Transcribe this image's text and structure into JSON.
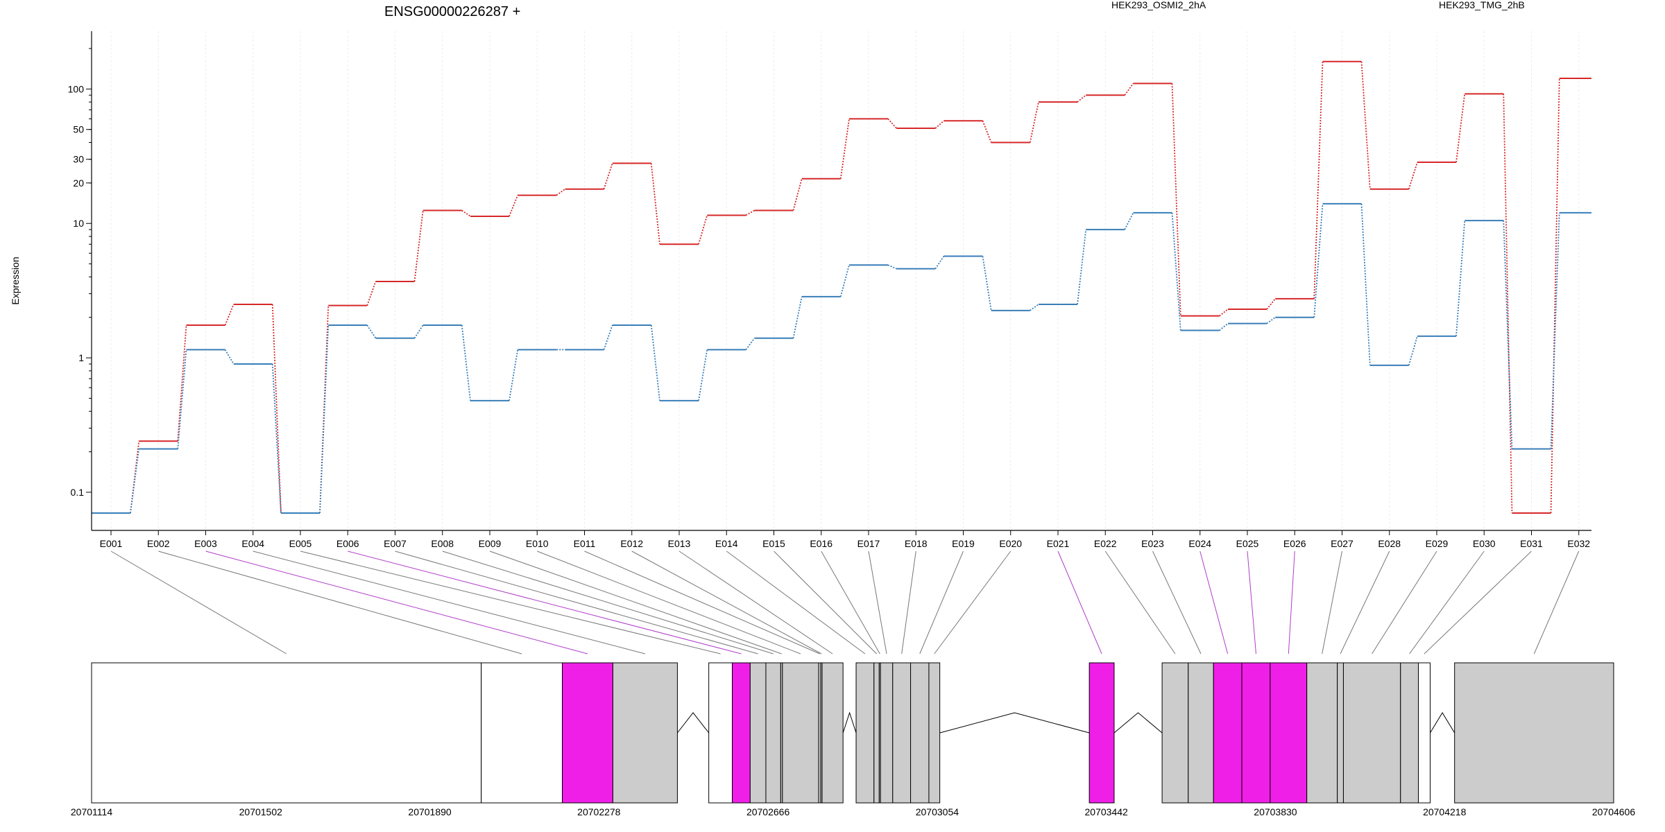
{
  "chart_data": {
    "type": "line",
    "title": "ENSG00000226287 +",
    "ylabel": "Expression",
    "yscale": "log",
    "ylim": [
      0.07,
      200
    ],
    "yticks": [
      {
        "value": 0.1,
        "label": "0.1"
      },
      {
        "value": 1,
        "label": "1"
      },
      {
        "value": 10,
        "label": "10"
      },
      {
        "value": 20,
        "label": "20"
      },
      {
        "value": 30,
        "label": "30"
      },
      {
        "value": 50,
        "label": "50"
      },
      {
        "value": 100,
        "label": "100"
      }
    ],
    "categories": [
      "E001",
      "E002",
      "E003",
      "E004",
      "E005",
      "E006",
      "E007",
      "E008",
      "E009",
      "E010",
      "E011",
      "E012",
      "E013",
      "E014",
      "E015",
      "E016",
      "E017",
      "E018",
      "E019",
      "E020",
      "E021",
      "E022",
      "E023",
      "E024",
      "E025",
      "E026",
      "E027",
      "E028",
      "E029",
      "E030",
      "E031",
      "E032"
    ],
    "series": [
      {
        "name": "HEK293_OSMI2_2hA",
        "color": "#d62728",
        "values": [
          0.07,
          0.24,
          1.75,
          2.5,
          0.07,
          2.45,
          3.7,
          12.5,
          11.3,
          16.2,
          18.0,
          28.0,
          7.0,
          11.5,
          12.5,
          21.5,
          60.0,
          51.0,
          58.0,
          40.0,
          80.0,
          90.0,
          110.0,
          2.05,
          2.3,
          2.75,
          160.0,
          18.0,
          28.5,
          92.0,
          0.07,
          120.0
        ]
      },
      {
        "name": "HEK293_TMG_2hB",
        "color": "#377eb8",
        "values": [
          0.07,
          0.21,
          1.15,
          0.9,
          0.07,
          1.75,
          1.4,
          1.75,
          0.48,
          1.15,
          1.15,
          1.75,
          0.48,
          1.15,
          1.4,
          2.85,
          4.9,
          4.6,
          5.7,
          2.25,
          2.5,
          9.0,
          12.0,
          1.6,
          1.8,
          2.0,
          14.0,
          0.88,
          1.45,
          10.5,
          0.21,
          12.0
        ]
      }
    ],
    "gene_model": {
      "coordinates": [
        "20701114",
        "20701502",
        "20701890",
        "20702278",
        "20702666",
        "20703054",
        "20703442",
        "20703830",
        "20704218",
        "20704606"
      ],
      "range": [
        20701114,
        20704606
      ],
      "exon_bins": [
        {
          "id": "E001",
          "start": 20701114,
          "end": 20702008,
          "fill": "white"
        },
        {
          "id": "E002",
          "start": 20702008,
          "end": 20702194,
          "fill": "white"
        },
        {
          "id": "E003",
          "start": 20702194,
          "end": 20702310,
          "fill": "magenta"
        },
        {
          "id": "E004",
          "start": 20702310,
          "end": 20702458,
          "fill": "gray"
        },
        {
          "id": "E005",
          "start": 20702530,
          "end": 20702584,
          "fill": "white"
        },
        {
          "id": "E006",
          "start": 20702584,
          "end": 20702625,
          "fill": "magenta"
        },
        {
          "id": "E007",
          "start": 20702625,
          "end": 20702661,
          "fill": "gray"
        },
        {
          "id": "E008",
          "start": 20702661,
          "end": 20702695,
          "fill": "gray"
        },
        {
          "id": "E009",
          "start": 20702695,
          "end": 20702699,
          "fill": "gray"
        },
        {
          "id": "E010",
          "start": 20702699,
          "end": 20702782,
          "fill": "gray"
        },
        {
          "id": "E011",
          "start": 20702782,
          "end": 20702787,
          "fill": "gray"
        },
        {
          "id": "E012",
          "start": 20702787,
          "end": 20702790,
          "fill": "gray"
        },
        {
          "id": "E013",
          "start": 20702790,
          "end": 20702838,
          "fill": "gray"
        },
        {
          "id": "E014",
          "start": 20702868,
          "end": 20702909,
          "fill": "gray"
        },
        {
          "id": "E015",
          "start": 20702909,
          "end": 20702921,
          "fill": "gray"
        },
        {
          "id": "E016",
          "start": 20702921,
          "end": 20702924,
          "fill": "gray"
        },
        {
          "id": "E017",
          "start": 20702924,
          "end": 20702952,
          "fill": "gray"
        },
        {
          "id": "E018",
          "start": 20702952,
          "end": 20702993,
          "fill": "gray"
        },
        {
          "id": "E019",
          "start": 20702993,
          "end": 20703035,
          "fill": "gray"
        },
        {
          "id": "E020",
          "start": 20703035,
          "end": 20703060,
          "fill": "gray"
        },
        {
          "id": "E021",
          "start": 20703403,
          "end": 20703460,
          "fill": "magenta"
        },
        {
          "id": "E022",
          "start": 20703570,
          "end": 20703630,
          "fill": "gray"
        },
        {
          "id": "E023",
          "start": 20703630,
          "end": 20703688,
          "fill": "gray"
        },
        {
          "id": "E024",
          "start": 20703688,
          "end": 20703753,
          "fill": "magenta"
        },
        {
          "id": "E025",
          "start": 20703753,
          "end": 20703818,
          "fill": "magenta"
        },
        {
          "id": "E026",
          "start": 20703818,
          "end": 20703902,
          "fill": "magenta"
        },
        {
          "id": "E027",
          "start": 20703902,
          "end": 20703972,
          "fill": "gray"
        },
        {
          "id": "E028",
          "start": 20703972,
          "end": 20703986,
          "fill": "gray"
        },
        {
          "id": "E029",
          "start": 20703986,
          "end": 20704117,
          "fill": "gray"
        },
        {
          "id": "E030",
          "start": 20704117,
          "end": 20704158,
          "fill": "gray"
        },
        {
          "id": "E031",
          "start": 20704158,
          "end": 20704185,
          "fill": "white"
        },
        {
          "id": "E032",
          "start": 20704241,
          "end": 20704606,
          "fill": "gray"
        }
      ]
    }
  }
}
